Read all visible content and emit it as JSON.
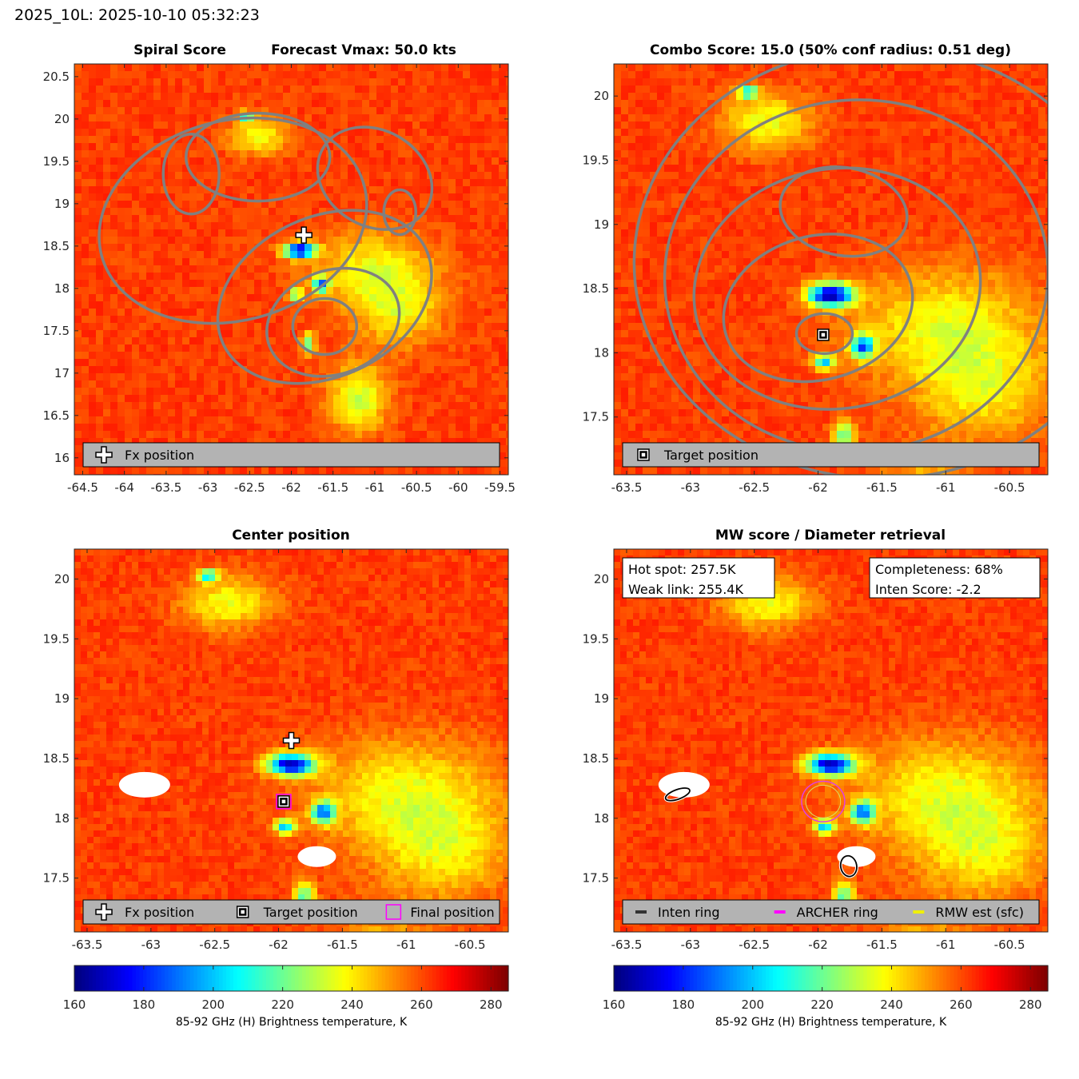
{
  "page_title": "2025_10L: 2025-10-10 05:32:23",
  "colorbar": {
    "ticks": [
      160,
      180,
      200,
      220,
      240,
      260,
      280
    ],
    "min": 160,
    "max": 285,
    "label": "85-92 GHz (H) Brightness temperature, K"
  },
  "chart_data": [
    {
      "type": "heatmap",
      "title": "Spiral Score",
      "subtitle": "Forecast Vmax: 50.0 kts",
      "xlim": [
        -64.6,
        -59.4
      ],
      "ylim": [
        15.8,
        20.65
      ],
      "xticks": [
        "-64.5",
        "-64",
        "-63.5",
        "-63",
        "-62.5",
        "-62",
        "-61.5",
        "-61",
        "-60.5",
        "-60",
        "-59.5"
      ],
      "yticks": [
        "16",
        "16.5",
        "17",
        "17.5",
        "18",
        "18.5",
        "19",
        "19.5",
        "20",
        "20.5"
      ],
      "legend": [
        {
          "marker": "plus",
          "label": "Fx position"
        }
      ],
      "markers": [
        {
          "type": "fx_position",
          "x": -61.85,
          "y": 18.63
        }
      ]
    },
    {
      "type": "heatmap",
      "title": "Combo Score: 15.0  (50% conf radius: 0.51 deg)",
      "xlim": [
        -63.6,
        -60.2
      ],
      "ylim": [
        17.05,
        20.25
      ],
      "xticks": [
        "-63.5",
        "-63",
        "-62.5",
        "-62",
        "-61.5",
        "-61",
        "-60.5"
      ],
      "yticks": [
        "17.5",
        "18",
        "18.5",
        "19",
        "19.5",
        "20"
      ],
      "legend": [
        {
          "marker": "square",
          "label": "Target position"
        }
      ],
      "markers": [
        {
          "type": "target_position",
          "x": -61.96,
          "y": 18.14
        }
      ]
    },
    {
      "type": "heatmap",
      "title": "Center position",
      "xlim": [
        -63.6,
        -60.2
      ],
      "ylim": [
        17.05,
        20.25
      ],
      "xticks": [
        "-63.5",
        "-63",
        "-62.5",
        "-62",
        "-61.5",
        "-61",
        "-60.5"
      ],
      "yticks": [
        "17.5",
        "18",
        "18.5",
        "19",
        "19.5",
        "20"
      ],
      "legend": [
        {
          "marker": "plus",
          "label": "Fx position"
        },
        {
          "marker": "square",
          "label": "Target position"
        },
        {
          "marker": "magenta-square",
          "label": "Final position"
        }
      ],
      "markers": [
        {
          "type": "fx_position",
          "x": -61.9,
          "y": 18.65
        },
        {
          "type": "target_position",
          "x": -61.96,
          "y": 18.14
        }
      ]
    },
    {
      "type": "heatmap",
      "title": "MW score / Diameter retrieval",
      "xlim": [
        -63.6,
        -60.2
      ],
      "ylim": [
        17.05,
        20.25
      ],
      "xticks": [
        "-63.5",
        "-63",
        "-62.5",
        "-62",
        "-61.5",
        "-61",
        "-60.5"
      ],
      "yticks": [
        "17.5",
        "18",
        "18.5",
        "19",
        "19.5",
        "20"
      ],
      "legend": [
        {
          "marker": "dark-line",
          "label": "Inten ring"
        },
        {
          "marker": "magenta-line",
          "label": "ARCHER ring"
        },
        {
          "marker": "yellow-line",
          "label": "RMW est (sfc)"
        }
      ],
      "info_left": [
        "Hot spot: 257.5K",
        "Weak link: 255.4K"
      ],
      "info_right": [
        "Completeness: 68%",
        "Inten Score: -2.2"
      ],
      "rings": [
        {
          "type": "archer_ring",
          "x": -61.96,
          "y": 18.14,
          "r_deg": 0.13
        }
      ]
    }
  ]
}
